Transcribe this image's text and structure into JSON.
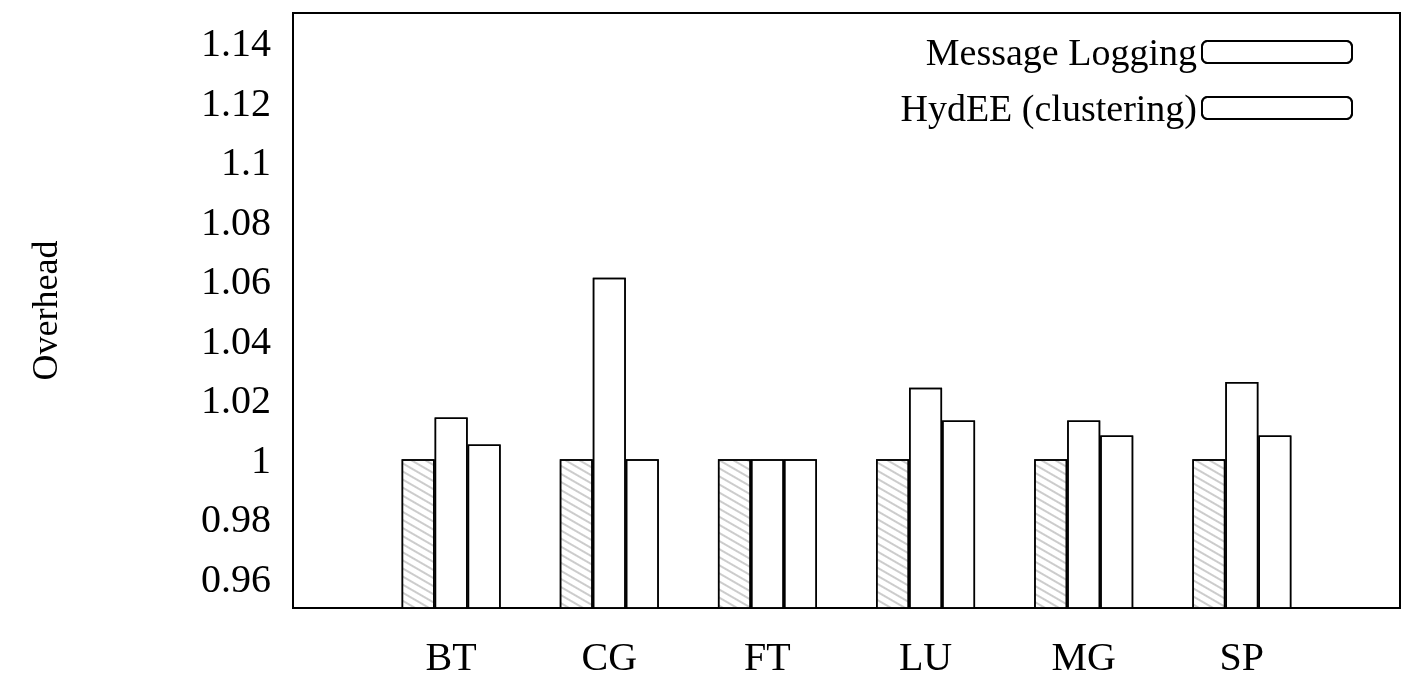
{
  "chart_data": {
    "type": "bar",
    "ylabel": "Overhead",
    "categories": [
      null,
      "BT",
      "CG",
      "FT",
      "LU",
      "MG",
      "SP",
      null
    ],
    "series": [
      {
        "color": "#ffffff",
        "values": [
          null,
          1,
          1,
          1,
          1,
          1,
          1,
          null
        ]
      },
      {
        "name": "Message Logging",
        "color": "#ffffff",
        "values": [
          null,
          1.014,
          1.061,
          1,
          1.024,
          1.013,
          1.026,
          null
        ]
      },
      {
        "name": "HydEE (clustering)",
        "color": "#ffffff",
        "values": [
          null,
          1.005,
          1,
          1,
          1.013,
          1.008,
          1.008,
          null
        ]
      }
    ],
    "ylim": [
      0.95,
      1.15
    ],
    "yticks": [
      0.96,
      0.98,
      1,
      1.02,
      1.04,
      1.06,
      1.08,
      1.1,
      1.12,
      1.14
    ],
    "grid": false,
    "legend": "top right"
  }
}
